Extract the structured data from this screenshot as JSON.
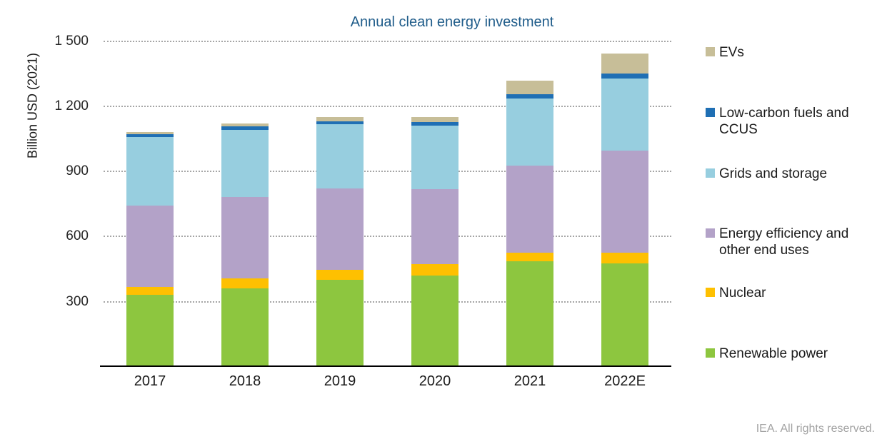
{
  "title": "Annual clean energy investment",
  "footer": "IEA. All rights reserved.",
  "y_axis": {
    "label": "Billion USD (2021)",
    "ticks": [
      "1 500",
      "1 200",
      "900",
      "600",
      "300"
    ],
    "tick_values": [
      1500,
      1200,
      900,
      600,
      300
    ]
  },
  "chart_data": {
    "type": "bar",
    "stacked": true,
    "title": "Annual clean energy investment",
    "xlabel": "",
    "ylabel": "Billion USD (2021)",
    "ylim": [
      0,
      1500
    ],
    "grid": "horizontal-dotted",
    "legend_position": "right",
    "categories": [
      "2017",
      "2018",
      "2019",
      "2020",
      "2021",
      "2022E"
    ],
    "series": [
      {
        "name": "Renewable power",
        "color": "#8DC63F",
        "values": [
          325,
          355,
          395,
          415,
          480,
          470
        ]
      },
      {
        "name": "Nuclear",
        "color": "#FEC001",
        "values": [
          35,
          45,
          45,
          50,
          40,
          50
        ]
      },
      {
        "name": "Energy efficiency and other end uses",
        "color": "#B3A2C8",
        "values": [
          375,
          375,
          375,
          345,
          400,
          470
        ]
      },
      {
        "name": "Grids and storage",
        "color": "#97CEDF",
        "values": [
          315,
          310,
          295,
          295,
          310,
          330
        ]
      },
      {
        "name": "Low-carbon fuels and CCUS",
        "color": "#1F6FB4",
        "values": [
          15,
          15,
          15,
          15,
          20,
          25
        ]
      },
      {
        "name": "EVs",
        "color": "#C7BE98",
        "values": [
          10,
          15,
          20,
          25,
          60,
          90
        ]
      }
    ],
    "totals": [
      1075,
      1115,
      1145,
      1145,
      1310,
      1435
    ]
  },
  "legend": {
    "items": [
      {
        "label": "EVs",
        "color": "#C7BE98"
      },
      {
        "label": "Low-carbon fuels and\nCCUS",
        "color": "#1F6FB4"
      },
      {
        "label": "Grids and storage",
        "color": "#97CEDF"
      },
      {
        "label": "Energy efficiency and\nother end uses",
        "color": "#B3A2C8"
      },
      {
        "label": "Nuclear",
        "color": "#FEC001"
      },
      {
        "label": "Renewable power",
        "color": "#8DC63F"
      }
    ]
  }
}
